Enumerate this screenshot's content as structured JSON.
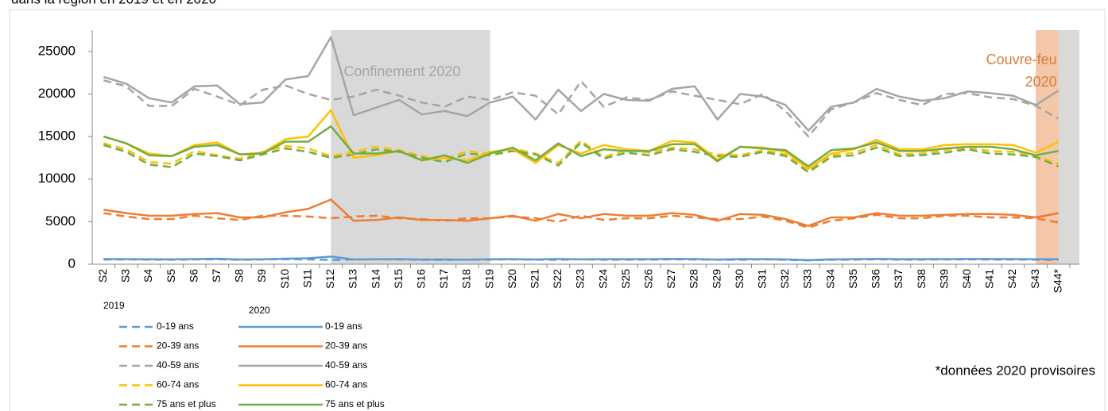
{
  "chart_data": {
    "type": "line",
    "title": "dans la région en 2019 et en 2020",
    "categories": [
      "S2",
      "S3",
      "S4",
      "S5",
      "S6",
      "S7",
      "S8",
      "S9",
      "S10",
      "S11",
      "S12",
      "S13",
      "S14",
      "S15",
      "S16",
      "S17",
      "S18",
      "S19",
      "S20",
      "S21",
      "S22",
      "S23",
      "S24",
      "S25",
      "S26",
      "S27",
      "S28",
      "S29",
      "S30",
      "S31",
      "S32",
      "S33",
      "S34",
      "S35",
      "S36",
      "S37",
      "S38",
      "S39",
      "S40",
      "S41",
      "S42",
      "S43",
      "S44*"
    ],
    "ylim": [
      0,
      27500
    ],
    "yticks": [
      0,
      5000,
      10000,
      15000,
      20000,
      25000
    ],
    "legend_groups": [
      {
        "label": "2019",
        "dashed": true
      },
      {
        "label": "2020",
        "dashed": false
      }
    ],
    "shaded_regions": [
      {
        "label": "Confinement 2020",
        "from": "S12",
        "to": "S19",
        "color": "#d9d9d9",
        "text_color": "#a6a6a6"
      },
      {
        "label": [
          "Couvre-feu",
          "2020"
        ],
        "from": "S43",
        "to": "S44*",
        "color": "#f4c7a9",
        "text_color": "#d97c3c"
      }
    ],
    "footnote": "*données 2020 provisoires",
    "series": [
      {
        "name": "0-19 ans",
        "group": 0,
        "color": "#5b9bd5",
        "values": [
          550,
          560,
          540,
          530,
          560,
          580,
          520,
          560,
          580,
          560,
          500,
          560,
          580,
          560,
          520,
          510,
          540,
          540,
          560,
          540,
          510,
          580,
          520,
          540,
          540,
          570,
          550,
          530,
          530,
          560,
          520,
          450,
          520,
          540,
          580,
          540,
          540,
          560,
          570,
          550,
          550,
          540,
          500
        ]
      },
      {
        "name": "20-39 ans",
        "group": 0,
        "color": "#ed7d31",
        "values": [
          6000,
          5600,
          5300,
          5300,
          5700,
          5400,
          5200,
          5700,
          5700,
          5600,
          5400,
          5600,
          5700,
          5400,
          5300,
          5100,
          5400,
          5400,
          5600,
          5400,
          5000,
          5700,
          5200,
          5400,
          5400,
          5700,
          5500,
          5300,
          5300,
          5600,
          5100,
          4300,
          5100,
          5400,
          5800,
          5400,
          5400,
          5700,
          5700,
          5500,
          5500,
          5400,
          4900
        ]
      },
      {
        "name": "40-59 ans",
        "group": 0,
        "color": "#a5a5a5",
        "values": [
          21600,
          20900,
          18600,
          18600,
          20600,
          19700,
          18700,
          20500,
          21000,
          20000,
          19300,
          19700,
          20500,
          19800,
          19000,
          18500,
          19700,
          19300,
          20200,
          19800,
          17600,
          21500,
          18500,
          19600,
          19300,
          20300,
          19800,
          19300,
          18800,
          20000,
          18000,
          15000,
          18200,
          19000,
          20100,
          19300,
          18700,
          20000,
          20100,
          19600,
          19400,
          18600,
          17100
        ]
      },
      {
        "name": "60-74 ans",
        "group": 0,
        "color": "#ffc000",
        "values": [
          14200,
          13500,
          12000,
          11800,
          13300,
          12800,
          12400,
          13200,
          13900,
          13600,
          12700,
          13200,
          13800,
          13400,
          12700,
          12300,
          13300,
          13000,
          13600,
          13000,
          11900,
          14500,
          12600,
          13400,
          13100,
          13700,
          13500,
          12900,
          12800,
          13400,
          12900,
          10900,
          12800,
          13100,
          14000,
          12900,
          13000,
          13400,
          13700,
          13300,
          13200,
          12700,
          11800
        ]
      },
      {
        "name": "75 ans et plus",
        "group": 0,
        "color": "#70ad47",
        "values": [
          14000,
          13200,
          11700,
          11400,
          13000,
          12700,
          12200,
          12900,
          13600,
          13200,
          12500,
          12900,
          13500,
          13200,
          12500,
          12000,
          13000,
          12800,
          13300,
          12900,
          11600,
          14300,
          12400,
          13100,
          12800,
          13500,
          13200,
          12700,
          12600,
          13200,
          12700,
          10800,
          12600,
          12800,
          13700,
          12700,
          12800,
          13100,
          13500,
          13000,
          12900,
          12600,
          11500
        ]
      },
      {
        "name": "0-19 ans",
        "group": 1,
        "color": "#5b9bd5",
        "values": [
          620,
          600,
          580,
          570,
          610,
          640,
          560,
          580,
          650,
          700,
          900,
          560,
          580,
          600,
          550,
          560,
          540,
          580,
          600,
          560,
          620,
          570,
          600,
          590,
          590,
          630,
          610,
          550,
          610,
          600,
          570,
          480,
          570,
          590,
          630,
          590,
          590,
          610,
          620,
          620,
          610,
          580,
          600
        ]
      },
      {
        "name": "20-39 ans",
        "group": 1,
        "color": "#ed7d31",
        "values": [
          6400,
          6000,
          5700,
          5700,
          5900,
          6000,
          5500,
          5500,
          6100,
          6500,
          7600,
          5100,
          5200,
          5500,
          5200,
          5200,
          5100,
          5400,
          5700,
          5100,
          5900,
          5400,
          5900,
          5700,
          5700,
          6000,
          5800,
          5100,
          5900,
          5800,
          5300,
          4500,
          5500,
          5500,
          6000,
          5700,
          5700,
          5800,
          5900,
          5900,
          5800,
          5500,
          6000
        ]
      },
      {
        "name": "40-59 ans",
        "group": 1,
        "color": "#a5a5a5",
        "values": [
          22000,
          21200,
          19500,
          19000,
          20900,
          21000,
          18800,
          19000,
          21700,
          22100,
          26700,
          17500,
          18400,
          19300,
          17600,
          18000,
          17400,
          19000,
          19700,
          17000,
          20500,
          18000,
          20000,
          19300,
          19200,
          20600,
          20900,
          17000,
          20000,
          19700,
          18700,
          15700,
          18500,
          19000,
          20600,
          19700,
          19200,
          19500,
          20300,
          20100,
          19800,
          18700,
          20400
        ]
      },
      {
        "name": "60-74 ans",
        "group": 1,
        "color": "#ffc000",
        "values": [
          15000,
          14200,
          13000,
          12700,
          14000,
          14300,
          12900,
          13100,
          14700,
          15000,
          18100,
          12500,
          12800,
          13300,
          12200,
          12500,
          12200,
          13200,
          13500,
          11900,
          14000,
          13000,
          14000,
          13500,
          13300,
          14500,
          14300,
          12300,
          13800,
          13700,
          13200,
          11200,
          13000,
          13500,
          14600,
          13500,
          13500,
          14000,
          14100,
          14100,
          14000,
          13100,
          14400
        ]
      },
      {
        "name": "75 ans et plus",
        "group": 1,
        "color": "#70ad47",
        "values": [
          15000,
          14200,
          12800,
          12700,
          13800,
          14000,
          12900,
          13000,
          14400,
          14400,
          16200,
          13000,
          13000,
          13300,
          12200,
          12800,
          11900,
          13000,
          13700,
          12200,
          14200,
          12700,
          13500,
          13300,
          13300,
          14100,
          14100,
          12100,
          13800,
          13600,
          13400,
          11500,
          13400,
          13600,
          14300,
          13300,
          13300,
          13600,
          13800,
          13800,
          13500,
          12800,
          13300
        ]
      }
    ]
  }
}
